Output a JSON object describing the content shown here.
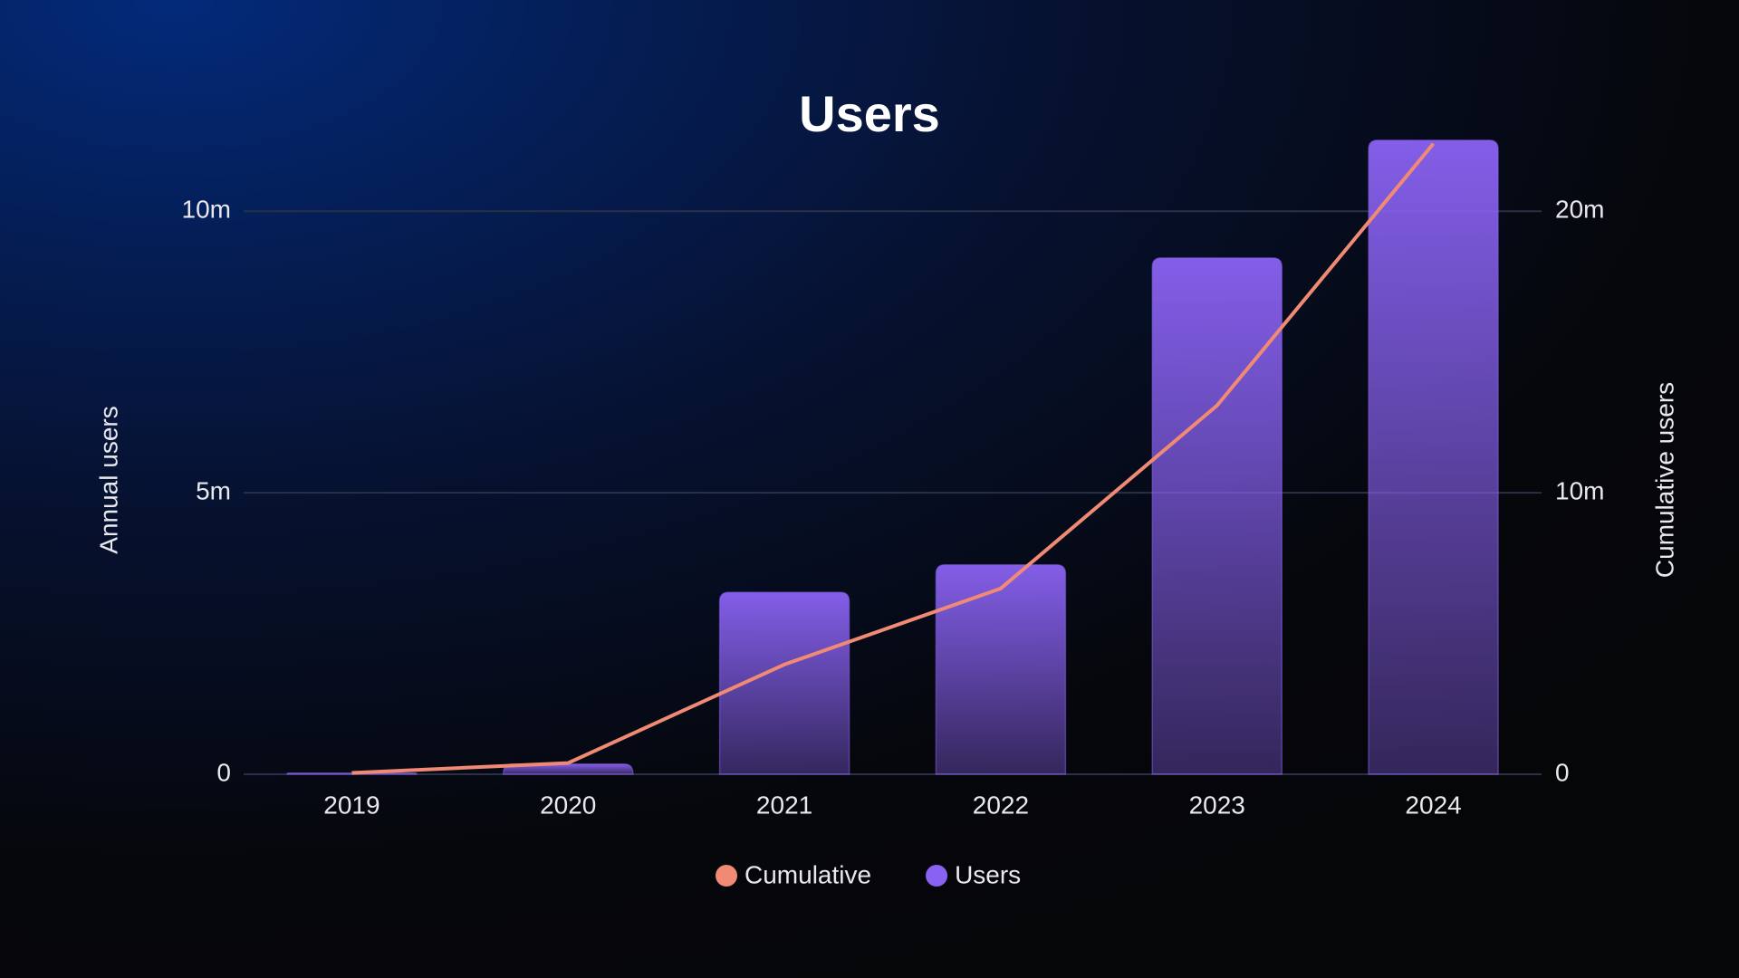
{
  "chart_data": {
    "type": "bar",
    "title": "Users",
    "categories": [
      "2019",
      "2020",
      "2021",
      "2022",
      "2023",
      "2024"
    ],
    "series": [
      {
        "name": "Cumulative",
        "type": "line",
        "axis": "y2",
        "color": "#f08a74",
        "values": [
          0.05,
          0.4,
          3.9,
          6.6,
          13.1,
          22.4
        ]
      },
      {
        "name": "Users",
        "type": "bar",
        "color": "#8a62f2",
        "values": [
          0.02,
          0.18,
          3.23,
          3.72,
          9.17,
          11.26
        ]
      }
    ],
    "ylabel": "Annual users",
    "y2label": "Cumulative users",
    "ylim": [
      0,
      11.5
    ],
    "yticks": [
      0,
      {
        "value": 5,
        "label": "5m"
      },
      {
        "value": 10,
        "label": "10m"
      }
    ],
    "y2lim": [
      0,
      23
    ],
    "y2ticks": [
      0,
      {
        "value": 10,
        "label": "10m"
      },
      {
        "value": 20,
        "label": "20m"
      }
    ],
    "grid": true,
    "legend": "bottom"
  }
}
